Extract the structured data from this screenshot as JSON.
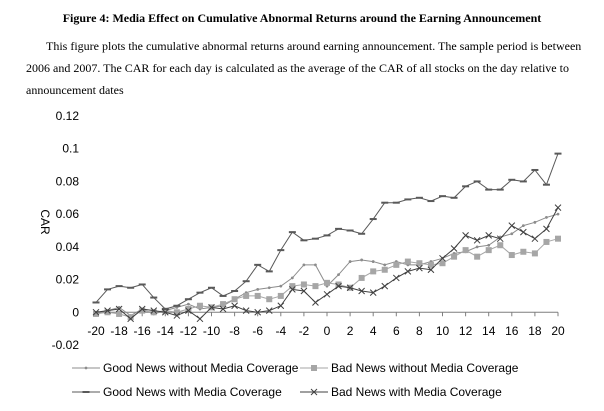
{
  "figure": {
    "title": "Figure 4: Media Effect on Cumulative Abnormal Returns around the Earning Announcement",
    "description": "This figure plots the cumulative abnormal returns around earning announcement. The sample period is between 2006 and 2007. The CAR for each day is calculated as the average of the CAR of all stocks on the day relative to announcement dates"
  },
  "chart_data": {
    "type": "line",
    "title": "",
    "xlabel": "",
    "ylabel": "CAR",
    "xlim": [
      -20,
      20
    ],
    "ylim": [
      -0.02,
      0.12
    ],
    "yticks": [
      -0.02,
      0,
      0.02,
      0.04,
      0.06,
      0.08,
      0.1,
      0.12
    ],
    "ytick_labels": [
      "-0.02",
      "0",
      "0.02",
      "0.04",
      "0.06",
      "0.08",
      "0.1",
      "0.12"
    ],
    "xticks": [
      -20,
      -18,
      -16,
      -14,
      -12,
      -10,
      -8,
      -6,
      -4,
      -2,
      0,
      2,
      4,
      6,
      8,
      10,
      12,
      14,
      16,
      18,
      20
    ],
    "xtick_labels": [
      "-20",
      "-18",
      "-16",
      "-14",
      "-12",
      "-10",
      "-8",
      "-6",
      "-4",
      "-2",
      "0",
      "2",
      "4",
      "6",
      "8",
      "10",
      "12",
      "14",
      "16",
      "18",
      "20"
    ],
    "grid": false,
    "legend": "bottom",
    "x": [
      -20,
      -19,
      -18,
      -17,
      -16,
      -15,
      -14,
      -13,
      -12,
      -11,
      -10,
      -9,
      -8,
      -7,
      -6,
      -5,
      -4,
      -3,
      -2,
      -1,
      0,
      1,
      2,
      3,
      4,
      5,
      6,
      7,
      8,
      9,
      10,
      11,
      12,
      13,
      14,
      15,
      16,
      17,
      18,
      19,
      20
    ],
    "series": [
      {
        "name": "Good News without Media Coverage",
        "marker": "dot",
        "color": "#8c8c8c",
        "values": [
          -0.001,
          0.001,
          0.003,
          -0.002,
          0.002,
          -0.001,
          0.001,
          0.003,
          0.005,
          0.002,
          0.003,
          0.004,
          0.008,
          0.012,
          0.014,
          0.015,
          0.016,
          0.021,
          0.029,
          0.029,
          0.016,
          0.023,
          0.031,
          0.032,
          0.031,
          0.029,
          0.031,
          0.029,
          0.029,
          0.031,
          0.033,
          0.036,
          0.037,
          0.04,
          0.041,
          0.046,
          0.048,
          0.053,
          0.055,
          0.058,
          0.06
        ]
      },
      {
        "name": "Bad News without Media Coverage",
        "marker": "square",
        "color": "#a6a6a6",
        "values": [
          -0.001,
          0.0,
          -0.001,
          -0.003,
          0.001,
          0.0,
          0.001,
          0.0,
          0.002,
          0.004,
          0.003,
          0.005,
          0.008,
          0.01,
          0.01,
          0.008,
          0.01,
          0.016,
          0.017,
          0.016,
          0.018,
          0.017,
          0.015,
          0.021,
          0.025,
          0.026,
          0.029,
          0.031,
          0.03,
          0.029,
          0.03,
          0.034,
          0.038,
          0.034,
          0.038,
          0.041,
          0.035,
          0.037,
          0.036,
          0.043,
          0.045
        ]
      },
      {
        "name": "Good News with Media Coverage",
        "marker": "dash",
        "color": "#595959",
        "values": [
          0.006,
          0.014,
          0.016,
          0.015,
          0.017,
          0.009,
          0.002,
          0.004,
          0.008,
          0.012,
          0.015,
          0.01,
          0.013,
          0.019,
          0.029,
          0.025,
          0.038,
          0.049,
          0.044,
          0.045,
          0.047,
          0.051,
          0.05,
          0.048,
          0.057,
          0.067,
          0.067,
          0.069,
          0.07,
          0.068,
          0.071,
          0.07,
          0.077,
          0.08,
          0.075,
          0.075,
          0.081,
          0.08,
          0.087,
          0.078,
          0.097
        ]
      },
      {
        "name": "Bad News with Media Coverage",
        "marker": "x",
        "color": "#404040",
        "values": [
          0.0,
          0.001,
          0.002,
          -0.004,
          0.002,
          0.001,
          0.0,
          -0.002,
          0.001,
          -0.004,
          0.003,
          0.002,
          0.004,
          0.001,
          0.0,
          0.001,
          0.004,
          0.014,
          0.013,
          0.006,
          0.011,
          0.016,
          0.015,
          0.013,
          0.012,
          0.016,
          0.021,
          0.025,
          0.027,
          0.026,
          0.033,
          0.039,
          0.047,
          0.044,
          0.047,
          0.045,
          0.053,
          0.049,
          0.045,
          0.051,
          0.064
        ]
      }
    ]
  }
}
